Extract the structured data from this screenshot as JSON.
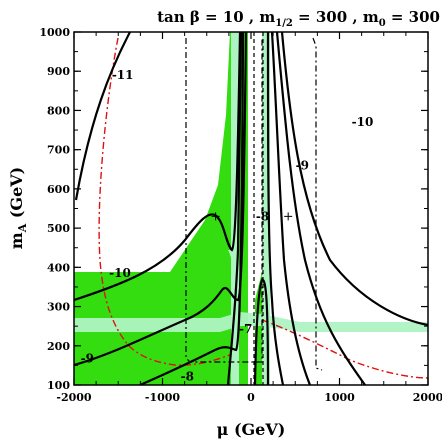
{
  "chart_data": {
    "type": "contour",
    "title": "tan β = 10 ,  m1/2 = 300 ,  m0 = 300",
    "title_parts": {
      "t1": "tan β = 10 ,  m",
      "s1": "1/2",
      "t2": " = 300 ,  m",
      "s2": "0",
      "t3": " = 300"
    },
    "xlabel": "μ (GeV)",
    "ylabel_main": "m",
    "ylabel_sub": "A",
    "ylabel_unit": " (GeV)",
    "xlim": [
      -2000,
      2000
    ],
    "ylim": [
      100,
      1000
    ],
    "x_ticks": [
      -2000,
      -1000,
      0,
      1000,
      2000
    ],
    "x_tick_labels": [
      "-2000",
      "-1000",
      "0",
      "1000",
      "2000"
    ],
    "y_ticks": [
      100,
      200,
      300,
      400,
      500,
      600,
      700,
      800,
      900,
      1000
    ],
    "y_tick_labels": [
      "100",
      "200",
      "300",
      "400",
      "500",
      "600",
      "700",
      "800",
      "900",
      "1000"
    ],
    "contour_labels": [
      {
        "text": "-11",
        "x": -1450,
        "y": 880
      },
      {
        "text": "-10",
        "x": 1260,
        "y": 760
      },
      {
        "text": "-10",
        "x": -1480,
        "y": 375
      },
      {
        "text": "-9",
        "x": 580,
        "y": 650
      },
      {
        "text": "-9",
        "x": -1850,
        "y": 158
      },
      {
        "text": "-8",
        "x": 130,
        "y": 520
      },
      {
        "text": "-8",
        "x": -720,
        "y": 112
      },
      {
        "text": "-7",
        "x": -60,
        "y": 232
      }
    ],
    "markers": [
      {
        "x": -400,
        "y": 530
      },
      {
        "x": 420,
        "y": 530
      }
    ],
    "colors": {
      "allowed_region": "#33dd0f",
      "light_band": "#aef3c2",
      "contour": "#000000",
      "red_dashdot": "#dd1111",
      "black_dashdot": "#000000"
    }
  }
}
